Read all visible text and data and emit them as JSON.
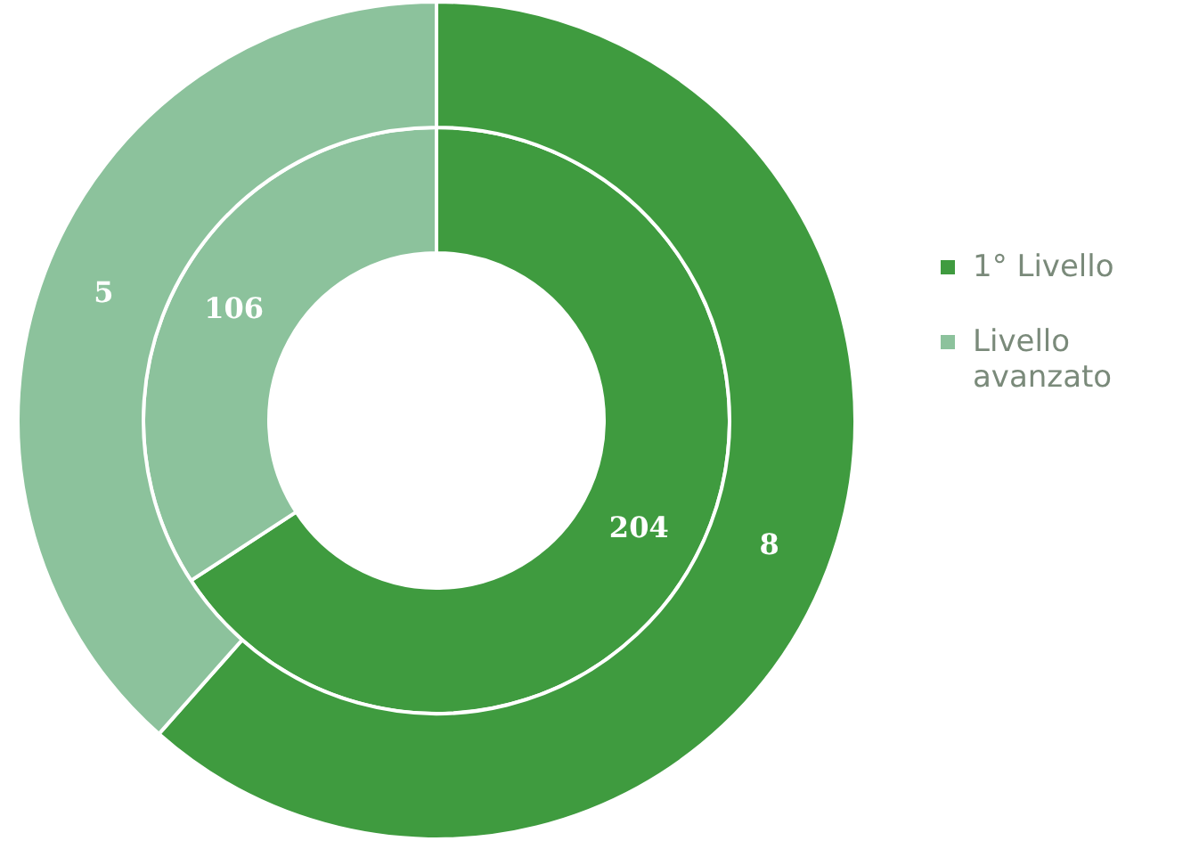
{
  "chart_data": {
    "type": "donut",
    "categories": [
      "1° Livello",
      "Livello avanzato"
    ],
    "colors": [
      "#3f9b3f",
      "#8cc29c"
    ],
    "series": [
      {
        "values": [
          8,
          5
        ]
      },
      {
        "values": [
          204,
          106
        ]
      }
    ],
    "data_labels": true,
    "legend": "right"
  }
}
